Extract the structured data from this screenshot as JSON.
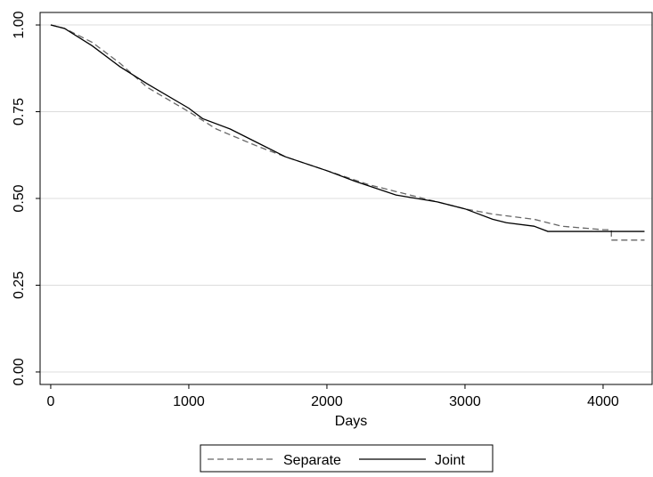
{
  "chart_data": {
    "type": "line",
    "xlabel": "Days",
    "xlim": [
      -77,
      4355
    ],
    "ylim": [
      -0.036,
      1.036
    ],
    "xticks": [
      0,
      1000,
      2000,
      3000,
      4000
    ],
    "yticks": [
      {
        "value": 0,
        "label": "0.00"
      },
      {
        "value": 0.25,
        "label": "0.25"
      },
      {
        "value": 0.5,
        "label": "0.50"
      },
      {
        "value": 0.75,
        "label": "0.75"
      },
      {
        "value": 1,
        "label": "1.00"
      }
    ],
    "grid": true,
    "legend": "bottom",
    "series": [
      {
        "name": "Separate",
        "color": "#666666",
        "style": "dashed",
        "x": [
          0,
          100,
          300,
          500,
          700,
          1000,
          1200,
          1500,
          1700,
          2000,
          2300,
          2500,
          2800,
          3000,
          3200,
          3500,
          3700,
          4000,
          4060,
          4060,
          4300
        ],
        "values": [
          1.0,
          0.99,
          0.95,
          0.89,
          0.82,
          0.75,
          0.7,
          0.65,
          0.62,
          0.58,
          0.54,
          0.52,
          0.49,
          0.47,
          0.455,
          0.44,
          0.42,
          0.41,
          0.41,
          0.38,
          0.38
        ]
      },
      {
        "name": "Joint",
        "color": "#000000",
        "style": "solid",
        "x": [
          0,
          100,
          300,
          500,
          700,
          1000,
          1100,
          1300,
          1500,
          1700,
          2000,
          2200,
          2500,
          2800,
          3000,
          3200,
          3300,
          3500,
          3600,
          4300
        ],
        "values": [
          1.0,
          0.99,
          0.94,
          0.88,
          0.83,
          0.76,
          0.73,
          0.7,
          0.66,
          0.62,
          0.58,
          0.55,
          0.51,
          0.49,
          0.47,
          0.44,
          0.43,
          0.42,
          0.405,
          0.405
        ]
      }
    ]
  }
}
